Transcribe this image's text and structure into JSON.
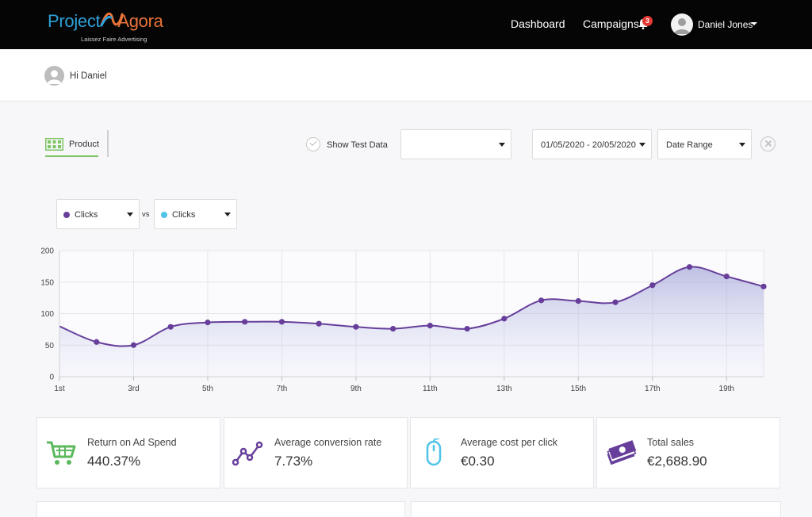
{
  "app": {
    "logo_part1": "Project",
    "logo_part2": "Agora",
    "tagline": "Laissez Faire Advertising"
  },
  "nav": {
    "dashboard": "Dashboard",
    "campaigns": "Campaigns",
    "notification_count": "3",
    "user_name": "Daniel Jones"
  },
  "greeting": "Hi Daniel",
  "filters": {
    "product_tab": "Product",
    "show_test_data": "Show Test Data",
    "blank_select": "",
    "date_range_value": "01/05/2020 - 20/05/2020",
    "range_type": "Date Range"
  },
  "metrics": {
    "primary": "Clicks",
    "secondary": "Clicks",
    "vs": "vs",
    "primary_color": "#673f9b",
    "secondary_color": "#4fc3e8"
  },
  "chart_data": {
    "type": "area",
    "x": [
      1,
      2,
      3,
      4,
      5,
      6,
      7,
      8,
      9,
      10,
      11,
      12,
      13,
      14,
      15,
      16,
      17,
      18,
      19,
      20
    ],
    "x_tick_labels": [
      "1st",
      "3rd",
      "5th",
      "7th",
      "9th",
      "11th",
      "13th",
      "15th",
      "17th",
      "19th"
    ],
    "x_tick_positions": [
      1,
      3,
      5,
      7,
      9,
      11,
      13,
      15,
      17,
      19
    ],
    "series": [
      {
        "values": [
          80,
          55,
          50,
          79,
          86,
          87,
          87,
          84,
          79,
          76,
          81,
          76,
          92,
          121,
          120,
          118,
          145,
          174,
          159,
          143
        ]
      }
    ],
    "y_ticks": [
      0,
      50,
      100,
      150,
      200
    ],
    "ylim": [
      0,
      200
    ],
    "xlim": [
      1,
      20
    ],
    "grid": true,
    "line_color": "#673f9b"
  },
  "kpis": [
    {
      "label": "Return on Ad Spend",
      "value": "440.37%",
      "icon": "cart-icon",
      "color": "#5cb85c"
    },
    {
      "label": "Average conversion rate",
      "value": "7.73%",
      "icon": "trend-icon",
      "color": "#673f9b"
    },
    {
      "label": "Average cost per click",
      "value": "€0.30",
      "icon": "mouse-icon",
      "color": "#4fc3e8"
    },
    {
      "label": "Total sales",
      "value": "€2,688.90",
      "icon": "money-icon",
      "color": "#673f9b"
    }
  ]
}
